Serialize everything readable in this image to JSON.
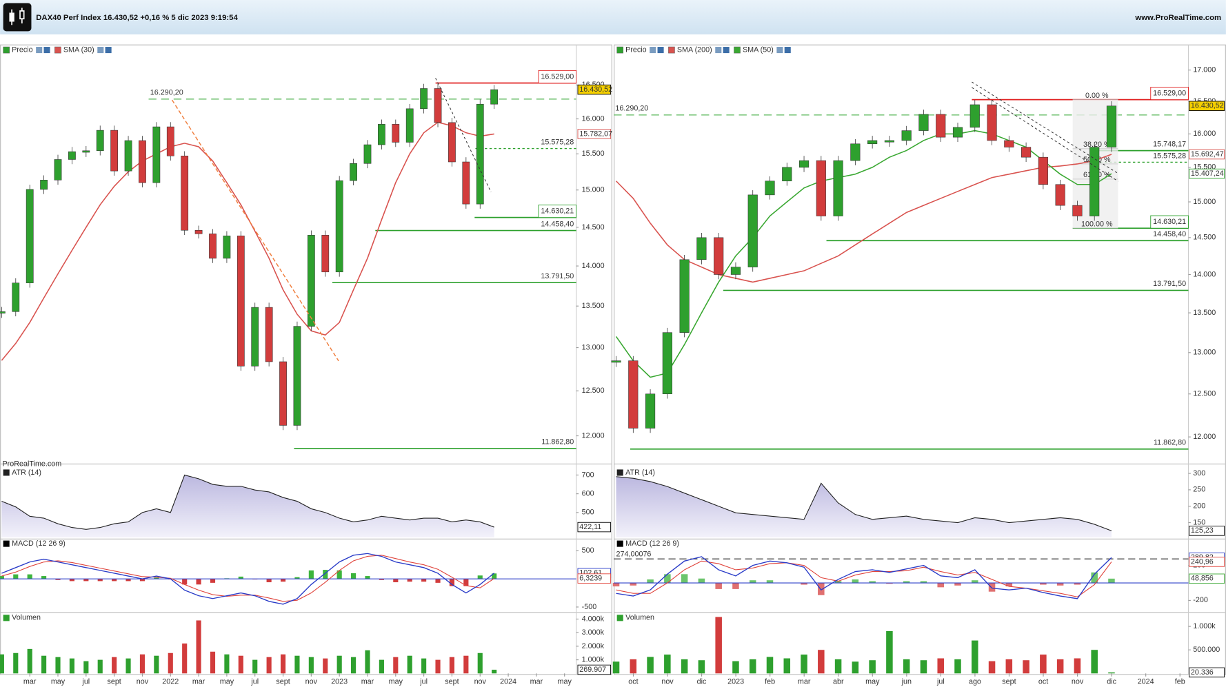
{
  "header": {
    "title": "DAX40 Perf Index 16.430,52 +0,16 % 5 dic 2023 9:19:54",
    "site": "www.ProRealTime.com"
  },
  "panels": [
    {
      "price": {
        "legend": "Precio",
        "log": true,
        "ylim": [
          11730,
          16960
        ],
        "up_color": "#2ea02e",
        "down_color": "#d23c3c",
        "yticks": [
          {
            "value": 12000,
            "label": "12.000"
          },
          {
            "value": 12500,
            "label": "12.500"
          },
          {
            "value": 13000,
            "label": "13.000"
          },
          {
            "value": 13500,
            "label": "13.500"
          },
          {
            "value": 14000,
            "label": "14.000"
          },
          {
            "value": 14500,
            "label": "14.500"
          },
          {
            "value": 15000,
            "label": "15.000"
          },
          {
            "value": 15500,
            "label": "15.500"
          },
          {
            "value": 16000,
            "label": "16.000"
          },
          {
            "value": 16500,
            "label": "16.500"
          }
        ],
        "close": [
          13432,
          13786,
          15008,
          15136,
          15421,
          15531,
          15544,
          15835,
          15261,
          15688,
          15100,
          15885,
          15471,
          14461,
          14415,
          14098,
          14388,
          12784,
          13484,
          12835,
          12114,
          13254,
          14397,
          13924,
          15128,
          15365,
          15629,
          15922,
          15664,
          16148,
          16447,
          15947,
          15387,
          14810,
          16215,
          16430.52
        ],
        "sma": [
          {
            "name": "SMA (30)",
            "color": "#d9534f",
            "values": [
              12850,
              13050,
              13300,
              13600,
              13900,
              14200,
              14500,
              14800,
              15050,
              15250,
              15400,
              15500,
              15600,
              15650,
              15600,
              15400,
              15100,
              14800,
              14450,
              14100,
              13700,
              13400,
              13200,
              13150,
              13300,
              13700,
              14100,
              14600,
              15100,
              15500,
              15800,
              15950,
              15900,
              15800,
              15750,
              15782.07
            ]
          }
        ],
        "levels": [
          {
            "value": 16529,
            "label": "16.529,00",
            "color": "#e02020",
            "style": "solid",
            "boxed": true
          },
          {
            "value": 16290.2,
            "label": "16.290,20",
            "color": "#5cb85c",
            "style": "dash",
            "boxed": false
          },
          {
            "value": 15575.28,
            "label": "15.575,28",
            "color": "#2ca02c",
            "style": "dot",
            "boxed": false
          },
          {
            "value": 14630.21,
            "label": "14.630,21",
            "color": "#2ca02c",
            "style": "solid",
            "boxed": true
          },
          {
            "value": 14458.4,
            "label": "14.458,40",
            "color": "#2ca02c",
            "style": "solid",
            "boxed": false
          },
          {
            "value": 13791.5,
            "label": "13.791,50",
            "color": "#2ca02c",
            "style": "solid",
            "boxed": false
          },
          {
            "value": 11862.8,
            "label": "11.862,80",
            "color": "#2ca02c",
            "style": "solid",
            "boxed": false
          }
        ],
        "tags": [
          {
            "value": 16430.52,
            "label": "16.430,52",
            "color": "#000000",
            "fill": "#f5d000"
          },
          {
            "value": 15782.07,
            "label": "15.782,07",
            "color": "#d9534f",
            "fill": "#ffffff"
          }
        ],
        "watermark": "ProRealTime.com"
      },
      "atr": {
        "name": "ATR (14)",
        "color": "#222222",
        "fill": "#c9c7e6",
        "ylim": [
          367,
          742
        ],
        "yticks": [
          500,
          600,
          700
        ],
        "values": [
          560,
          530,
          480,
          470,
          440,
          420,
          410,
          420,
          440,
          450,
          500,
          520,
          500,
          700,
          680,
          650,
          640,
          640,
          620,
          610,
          580,
          560,
          520,
          500,
          470,
          450,
          460,
          480,
          470,
          460,
          470,
          470,
          450,
          460,
          450,
          422.11
        ],
        "tag": {
          "value": 422.11,
          "label": "422,11"
        }
      },
      "macd": {
        "name": "MACD (12 26 9)",
        "ylim": [
          -569,
          708
        ],
        "yticks": [
          -500,
          500
        ],
        "macd_color": "#2a3cc8",
        "signal_color": "#e0443c",
        "up_color": "#3cb43c",
        "down_color": "#d23c3c",
        "macd": [
          100,
          200,
          300,
          350,
          300,
          250,
          200,
          150,
          100,
          50,
          0,
          50,
          0,
          -200,
          -300,
          -350,
          -300,
          -250,
          -300,
          -400,
          -450,
          -350,
          -100,
          100,
          300,
          420,
          450,
          400,
          300,
          250,
          200,
          100,
          -100,
          -250,
          -100,
          102.61
        ],
        "signal": [
          50,
          120,
          220,
          300,
          320,
          290,
          240,
          190,
          140,
          90,
          40,
          30,
          10,
          -100,
          -200,
          -280,
          -310,
          -290,
          -290,
          -340,
          -400,
          -380,
          -250,
          -60,
          150,
          320,
          400,
          420,
          360,
          300,
          250,
          170,
          30,
          -120,
          -160,
          6.3239
        ],
        "histogram": [
          50,
          80,
          80,
          50,
          -20,
          -40,
          -40,
          -40,
          -40,
          -40,
          -40,
          20,
          -10,
          -100,
          -100,
          -70,
          10,
          40,
          -10,
          -60,
          -50,
          30,
          150,
          160,
          150,
          100,
          50,
          -20,
          -60,
          -50,
          -50,
          -70,
          -130,
          -130,
          60,
          96
        ],
        "tags": [
          {
            "value": 102.61,
            "label": "102,61",
            "color": "#2a3cc8"
          },
          {
            "value": 6.3239,
            "label": "6,3239",
            "color": "#e0443c"
          }
        ]
      },
      "volume": {
        "name": "Volumen",
        "ylim": [
          0,
          4430000
        ],
        "yticks": [
          {
            "value": 1000000,
            "label": "1.000k"
          },
          {
            "value": 2000000,
            "label": "2.000k"
          },
          {
            "value": 3000000,
            "label": "3.000k"
          },
          {
            "value": 4000000,
            "label": "4.000k"
          }
        ],
        "values": [
          1400000,
          1500000,
          1800000,
          1300000,
          1200000,
          1100000,
          900000,
          1000000,
          1200000,
          1100000,
          1400000,
          1300000,
          1500000,
          2200000,
          3900000,
          1600000,
          1400000,
          1300000,
          1000000,
          1200000,
          1400000,
          1300000,
          1200000,
          1100000,
          1300000,
          1200000,
          1700000,
          1000000,
          1200000,
          1300000,
          1100000,
          1000000,
          1200000,
          1300000,
          1500000,
          269907
        ],
        "tag": {
          "value": 269907,
          "label": "269.907"
        }
      },
      "xlabels": [
        "mar",
        "may",
        "jul",
        "sept",
        "nov",
        "2022",
        "mar",
        "may",
        "jul",
        "sept",
        "nov",
        "2023",
        "mar",
        "may",
        "jul",
        "sept",
        "nov",
        "2024",
        "mar",
        "may"
      ]
    },
    {
      "price": {
        "legend": "Precio",
        "log": true,
        "ylim": [
          11730,
          17250
        ],
        "up_color": "#2ea02e",
        "down_color": "#d23c3c",
        "yticks": [
          {
            "value": 12000,
            "label": "12.000"
          },
          {
            "value": 12500,
            "label": "12.500"
          },
          {
            "value": 13000,
            "label": "13.000"
          },
          {
            "value": 13500,
            "label": "13.500"
          },
          {
            "value": 14000,
            "label": "14.000"
          },
          {
            "value": 14500,
            "label": "14.500"
          },
          {
            "value": 15000,
            "label": "15.000"
          },
          {
            "value": 15500,
            "label": "15.500"
          },
          {
            "value": 16000,
            "label": "16.000"
          },
          {
            "value": 16500,
            "label": "16.500"
          },
          {
            "value": 17000,
            "label": "17.000"
          }
        ],
        "close": [
          12900,
          12100,
          12500,
          13250,
          14200,
          14500,
          14000,
          14100,
          15100,
          15300,
          15500,
          15600,
          14800,
          15600,
          15850,
          15900,
          15900,
          16050,
          16300,
          15950,
          16100,
          16450,
          15900,
          15800,
          15650,
          15250,
          14950,
          14800,
          15800,
          16430.52
        ],
        "sma": [
          {
            "name": "SMA (200)",
            "color": "#d9534f",
            "values": [
              15300,
              15050,
              14700,
              14400,
              14200,
              14100,
              14000,
              13950,
              13900,
              13950,
              14000,
              14050,
              14150,
              14250,
              14400,
              14550,
              14700,
              14850,
              14950,
              15050,
              15150,
              15250,
              15350,
              15400,
              15450,
              15500,
              15520,
              15550,
              15600,
              15692.47
            ]
          },
          {
            "name": "SMA (50)",
            "color": "#3aa832",
            "values": [
              13200,
              12900,
              12700,
              12750,
              13100,
              13500,
              13900,
              14250,
              14500,
              14800,
              15000,
              15200,
              15300,
              15350,
              15400,
              15500,
              15650,
              15750,
              15900,
              16000,
              16000,
              16050,
              16000,
              15900,
              15800,
              15600,
              15400,
              15250,
              15250,
              15407.24
            ]
          }
        ],
        "levels": [
          {
            "value": 16529,
            "label": "16.529,00",
            "color": "#e02020",
            "style": "solid",
            "boxed": true
          },
          {
            "value": 16290.2,
            "label": "16.290,20",
            "color": "#5cb85c",
            "style": "dash",
            "boxed": false
          },
          {
            "value": 15748.17,
            "label": "15.748,17",
            "color": "#2ca02c",
            "style": "solid",
            "boxed": false
          },
          {
            "value": 15575.28,
            "label": "15.575,28",
            "color": "#2ca02c",
            "style": "dot",
            "boxed": false
          },
          {
            "value": 14630.21,
            "label": "14.630,21",
            "color": "#2ca02c",
            "style": "solid",
            "boxed": true
          },
          {
            "value": 14458.4,
            "label": "14.458,40",
            "color": "#2ca02c",
            "style": "solid",
            "boxed": false
          },
          {
            "value": 13791.5,
            "label": "13.791,50",
            "color": "#2ca02c",
            "style": "solid",
            "boxed": false
          },
          {
            "value": 11862.8,
            "label": "11.862,80",
            "color": "#2ca02c",
            "style": "solid",
            "boxed": false
          }
        ],
        "tags": [
          {
            "value": 16430.52,
            "label": "16.430,52",
            "color": "#000000",
            "fill": "#f5d000"
          },
          {
            "value": 15692.47,
            "label": "15.692,47",
            "color": "#d9534f",
            "fill": "#ffffff"
          },
          {
            "value": 15407.24,
            "label": "15.407,24",
            "color": "#2ca02c",
            "fill": "#ffffff"
          }
        ],
        "fib": [
          {
            "percent": 0,
            "label": "0.00 %"
          },
          {
            "percent": 38.2,
            "label": "38.20 %"
          },
          {
            "percent": 50,
            "label": "50.00 %"
          },
          {
            "percent": 61.8,
            "label": "61.80 %"
          },
          {
            "percent": 100,
            "label": "100.00 %"
          }
        ]
      },
      "atr": {
        "name": "ATR (14)",
        "color": "#222222",
        "fill": "#c9c7e6",
        "ylim": [
          105,
          319
        ],
        "yticks": [
          150,
          200,
          250,
          300
        ],
        "values": [
          290,
          285,
          275,
          260,
          240,
          220,
          200,
          180,
          175,
          170,
          165,
          160,
          270,
          210,
          175,
          160,
          165,
          170,
          160,
          155,
          150,
          165,
          160,
          150,
          155,
          160,
          165,
          160,
          145,
          125.23
        ],
        "tag": {
          "value": 125.23,
          "label": "125,23"
        }
      },
      "macd": {
        "name": "MACD (12 26 9)",
        "ylim": [
          -320,
          502
        ],
        "yticks": [
          -200,
          200
        ],
        "macd_color": "#2a3cc8",
        "signal_color": "#e0443c",
        "up_color": "#6cc46c",
        "down_color": "#e07070",
        "macd": [
          -120,
          -150,
          -80,
          100,
          250,
          300,
          150,
          80,
          200,
          250,
          230,
          180,
          -80,
          40,
          130,
          150,
          120,
          160,
          200,
          80,
          60,
          150,
          -60,
          -80,
          -60,
          -110,
          -150,
          -180,
          100,
          289.82
        ],
        "signal": [
          -80,
          -120,
          -120,
          0,
          150,
          250,
          220,
          150,
          170,
          220,
          230,
          200,
          60,
          20,
          90,
          130,
          130,
          140,
          180,
          130,
          90,
          120,
          40,
          -40,
          -60,
          -90,
          -120,
          -160,
          -20,
          240.96
        ],
        "histogram": [
          -40,
          -30,
          40,
          100,
          100,
          50,
          -70,
          -70,
          30,
          30,
          0,
          -20,
          -140,
          20,
          40,
          20,
          -10,
          20,
          20,
          -50,
          -30,
          30,
          -100,
          -40,
          0,
          -20,
          -30,
          -20,
          120,
          48.856
        ],
        "tags": [
          {
            "value": 289.82,
            "label": "289,82",
            "color": "#2a3cc8"
          },
          {
            "value": 240.96,
            "label": "240,96",
            "color": "#e0443c"
          },
          {
            "value": 48.856,
            "label": "48,856",
            "color": "#3aa832"
          }
        ],
        "ref": {
          "value": 274.00076,
          "label": "274,00076"
        }
      },
      "volume": {
        "name": "Volumen",
        "ylim": [
          0,
          1280000
        ],
        "yticks": [
          {
            "value": 500000,
            "label": "500.000"
          },
          {
            "value": 1000000,
            "label": "1.000k"
          }
        ],
        "values": [
          250000,
          300000,
          350000,
          400000,
          300000,
          280000,
          1200000,
          260000,
          300000,
          350000,
          320000,
          400000,
          500000,
          300000,
          250000,
          280000,
          900000,
          300000,
          280000,
          320000,
          300000,
          700000,
          260000,
          300000,
          280000,
          400000,
          300000,
          320000,
          500000,
          20336
        ],
        "tag": {
          "value": 20336,
          "label": "20.336"
        }
      },
      "xlabels": [
        "oct",
        "nov",
        "dic",
        "2023",
        "feb",
        "mar",
        "abr",
        "may",
        "jun",
        "jul",
        "ago",
        "sept",
        "oct",
        "nov",
        "dic",
        "2024",
        "feb"
      ]
    }
  ]
}
